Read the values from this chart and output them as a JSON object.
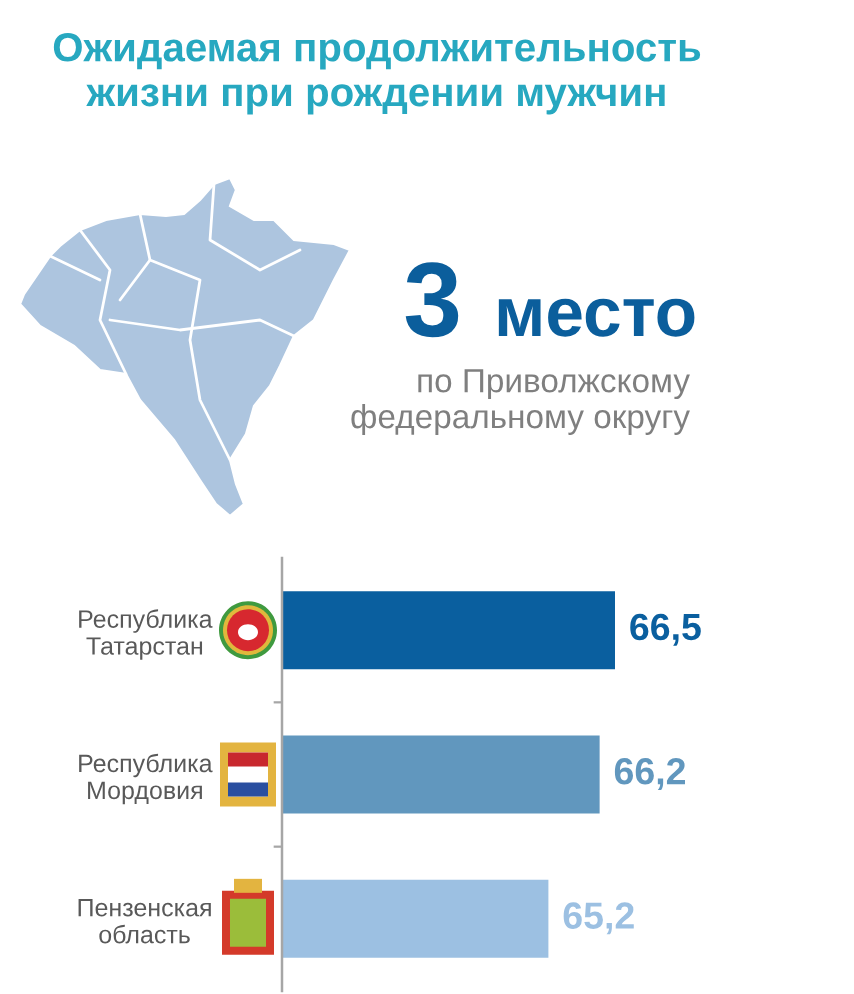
{
  "chart_data": {
    "type": "bar",
    "orientation": "horizontal",
    "title": "Ожидаемая продолжительность\nжизни при рождении мужчин",
    "annotations": [
      "3 место",
      "по Приволжскому\nфедеральному округу"
    ],
    "categories": [
      "Республика\nТатарстан",
      "Республика\nМордовия",
      "Пензенская\nобласть"
    ],
    "values": [
      66.5,
      66.2,
      65.2
    ],
    "colors": [
      "#0a5f9f",
      "#6197be",
      "#9cc0e2"
    ],
    "value_labels": [
      "66,5",
      "66,2",
      "65,2"
    ],
    "xlim": [
      60,
      66.5
    ],
    "tick_labels": "y"
  }
}
